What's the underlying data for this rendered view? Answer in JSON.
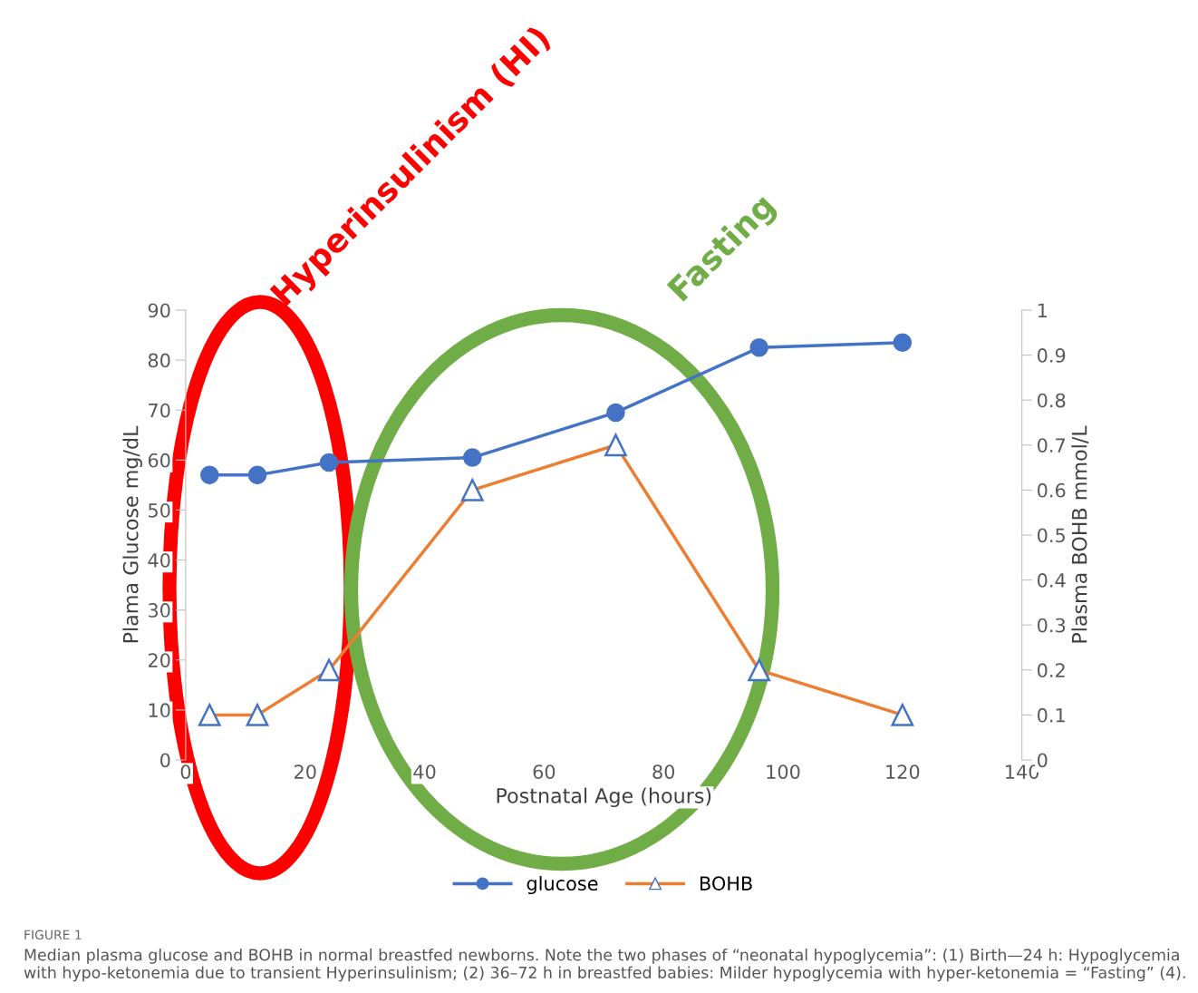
{
  "chart_data": {
    "type": "line",
    "xlabel": "Postnatal Age (hours)",
    "ylabel": "Plama Glucose mg/dL",
    "y2label": "Plasma BOHB mmol/L",
    "xlim": [
      0,
      140
    ],
    "xticks": [
      0,
      20,
      40,
      60,
      80,
      100,
      120,
      140
    ],
    "ylim": [
      0,
      90
    ],
    "yticks": [
      0,
      10,
      20,
      30,
      40,
      50,
      60,
      70,
      80,
      90
    ],
    "y2lim": [
      0,
      1
    ],
    "y2ticks": [
      0,
      {
        "value": 0.1,
        "label": "0.1"
      },
      {
        "value": 0.2,
        "label": "0.2"
      },
      {
        "value": 0.3,
        "label": "0.3"
      },
      {
        "value": 0.4,
        "label": "0.4"
      },
      {
        "value": 0.5,
        "label": "0.5"
      },
      {
        "value": 0.6,
        "label": "0.6"
      },
      {
        "value": 0.7,
        "label": "0.7"
      },
      {
        "value": 0.8,
        "label": "0.8"
      },
      {
        "value": 0.9,
        "label": "0.9"
      },
      1
    ],
    "x": [
      4,
      12,
      24,
      48,
      72,
      96,
      120
    ],
    "series": [
      {
        "name": "glucose",
        "color": "#4472c4",
        "marker": "circle",
        "values": [
          57,
          57,
          59.5,
          60.5,
          69.5,
          82.5,
          83.5
        ]
      },
      {
        "name": "BOHB",
        "color": "#ed7d31",
        "marker": "triangle",
        "axis": "y2",
        "colors": [
          "#4472c4",
          "#4472c4",
          "#4472c4",
          "#4472c4",
          "#4472c4",
          "#4472c4",
          "#4472c4"
        ],
        "values": [
          0.1,
          0.1,
          0.2,
          0.6,
          0.7,
          0.2,
          0.1
        ]
      }
    ],
    "legend": "bottom",
    "grid": false,
    "annotations": [
      "Hyperinsulinism (HI)",
      "Fasting",
      "FIGURE 1",
      {
        "text": "Median plasma glucose and BOHB in normal breastfed newborns. Note the two phases of “neonatal hypoglycemia”: (1) Birth—24 h: Hypoglycemia with hypo-ketonemia due to transient Hyperinsulinism; (2) 36–72 h in breastfed babies: Milder hypoglycemia with hyper-ketonemia = “Fasting” (4)."
      }
    ]
  }
}
